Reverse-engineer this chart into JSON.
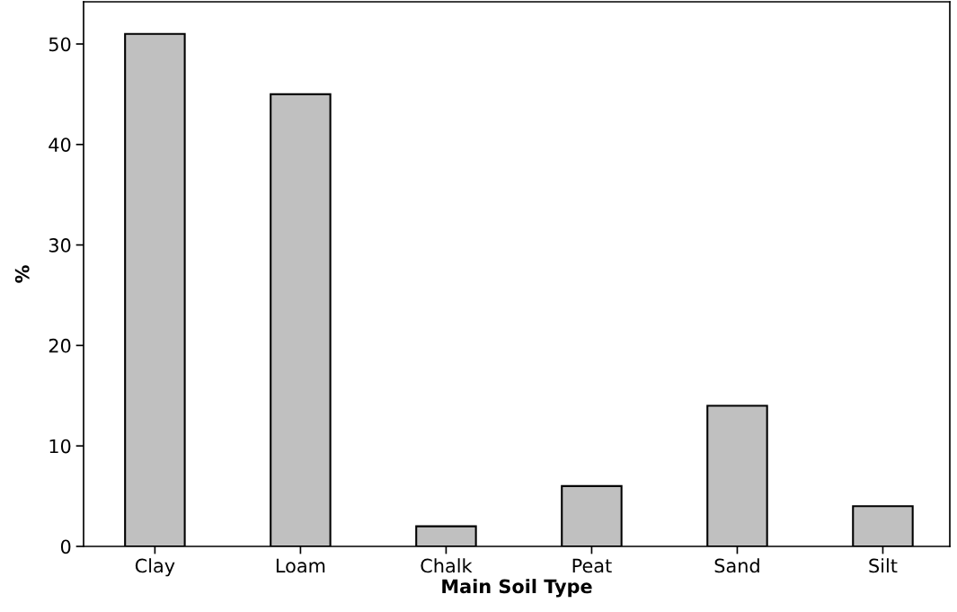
{
  "chart_data": {
    "type": "bar",
    "xlabel": "Main Soil Type",
    "ylabel": "%",
    "categories": [
      "Clay",
      "Loam",
      "Chalk",
      "Peat",
      "Sand",
      "Silt"
    ],
    "values": [
      51,
      45,
      2,
      6,
      14,
      4
    ],
    "color": "#c0c0c0",
    "ylim": [
      0,
      54.2
    ],
    "yticks": [
      0,
      10,
      20,
      30,
      40,
      50
    ],
    "grid": false,
    "legend": false
  }
}
